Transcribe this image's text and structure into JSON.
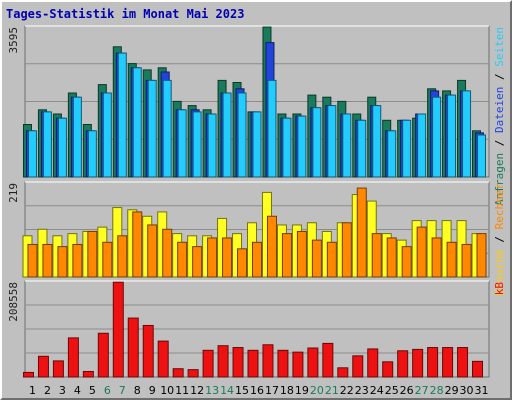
{
  "chart_data": {
    "type": "bar",
    "title": "Tages-Statistik im Monat Mai 2023",
    "categories": [
      "1",
      "2",
      "3",
      "4",
      "5",
      "6",
      "7",
      "8",
      "9",
      "10",
      "11",
      "12",
      "13",
      "14",
      "15",
      "16",
      "17",
      "18",
      "19",
      "20",
      "21",
      "22",
      "23",
      "24",
      "25",
      "26",
      "27",
      "28",
      "29",
      "30",
      "31"
    ],
    "weekend_days": [
      "6",
      "7",
      "13",
      "14",
      "20",
      "21",
      "27",
      "28"
    ],
    "panels": [
      {
        "id": "top",
        "ymax_label": "3595",
        "ylim": [
          0,
          3595
        ],
        "series": [
          {
            "name": "Anfragen",
            "color": "#1a7a5c",
            "values": [
              1250,
              1600,
              1500,
              2000,
              1250,
              2200,
              3100,
              2700,
              2550,
              2600,
              1800,
              1700,
              1600,
              2300,
              2250,
              1550,
              3700,
              1500,
              1500,
              1950,
              1900,
              1800,
              1500,
              1900,
              1350,
              1350,
              1400,
              2100,
              2050,
              2300,
              1100
            ]
          },
          {
            "name": "Dateien",
            "color": "#2244dd",
            "values": [
              1100,
              1550,
              1400,
              1900,
              1100,
              2000,
              2950,
              2600,
              2300,
              2500,
              1600,
              1600,
              1500,
              2000,
              2100,
              1550,
              3200,
              1400,
              1450,
              1650,
              1700,
              1500,
              1350,
              1700,
              1100,
              1350,
              1500,
              2050,
              1950,
              2050,
              1050
            ]
          },
          {
            "name": "Seiten",
            "color": "#22ccff",
            "values": [
              1100,
              1550,
              1400,
              1900,
              1100,
              2000,
              2950,
              2600,
              2300,
              2300,
              1600,
              1550,
              1500,
              2000,
              2000,
              1550,
              2300,
              1400,
              1450,
              1650,
              1700,
              1500,
              1350,
              1700,
              1100,
              1350,
              1500,
              1900,
              1950,
              2050,
              1000
            ]
          }
        ],
        "right_label_parts": [
          {
            "text": "Anfragen",
            "color": "#1a7a5c"
          },
          {
            "text": " / ",
            "color": "#000000"
          },
          {
            "text": "Dateien",
            "color": "#2244dd"
          },
          {
            "text": " / ",
            "color": "#000000"
          },
          {
            "text": "Seiten",
            "color": "#22ccff"
          }
        ]
      },
      {
        "id": "mid",
        "ymax_label": "219",
        "ylim": [
          0,
          219
        ],
        "series": [
          {
            "name": "Besuche",
            "color": "#ffff22",
            "values": [
              95,
              110,
              95,
              100,
              105,
              115,
              160,
              155,
              140,
              150,
              100,
              95,
              95,
              135,
              100,
              125,
              195,
              120,
              120,
              125,
              105,
              125,
              190,
              175,
              100,
              85,
              130,
              130,
              130,
              130,
              100
            ]
          },
          {
            "name": "Rechner",
            "color": "#ff8800",
            "values": [
              75,
              75,
              70,
              75,
              105,
              80,
              95,
              150,
              120,
              110,
              80,
              70,
              90,
              90,
              65,
              80,
              140,
              100,
              105,
              85,
              80,
              125,
              205,
              100,
              90,
              70,
              115,
              90,
              80,
              75,
              100
            ]
          }
        ],
        "right_label_parts": [
          {
            "text": "Besuche",
            "color": "#ffcc00"
          },
          {
            "text": " / ",
            "color": "#000000"
          },
          {
            "text": "Rechner",
            "color": "#ff8800"
          }
        ]
      },
      {
        "id": "bot",
        "ymax_label": "208558",
        "ylim": [
          0,
          208558
        ],
        "series": [
          {
            "name": "kB",
            "color": "#ee1111",
            "values": [
              10000,
              45000,
              35000,
              85000,
              12000,
              95000,
              206000,
              128000,
              112000,
              78000,
              18000,
              16000,
              58000,
              68000,
              64000,
              58000,
              70000,
              58000,
              54000,
              63000,
              73000,
              20000,
              46000,
              61000,
              33000,
              57000,
              60000,
              64000,
              64000,
              64000,
              34000
            ]
          }
        ],
        "right_label_parts": [
          {
            "text": "kB",
            "color": "#ee1111"
          }
        ]
      }
    ],
    "colors": {
      "title": "#0000b4",
      "weekend_day": "#1a7a5c",
      "weekday": "#000000",
      "grid": "#8c8c8c",
      "plot_bg": "#c0c0c0"
    }
  }
}
